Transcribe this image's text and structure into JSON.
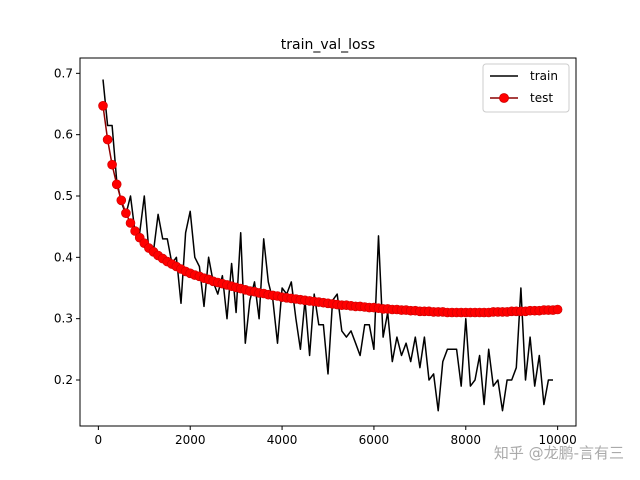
{
  "chart_data": {
    "type": "line",
    "title": "train_val_loss",
    "xlabel": "",
    "ylabel": "",
    "xlim": [
      -400,
      10400
    ],
    "ylim": [
      0.125,
      0.725
    ],
    "xticks": [
      0,
      2000,
      4000,
      6000,
      8000,
      10000
    ],
    "yticks": [
      0.2,
      0.3,
      0.4,
      0.5,
      0.6,
      0.7
    ],
    "grid": false,
    "legend": "top-right",
    "series": [
      {
        "name": "train",
        "color": "#000000",
        "marker": "none",
        "x": [
          100,
          200,
          300,
          400,
          500,
          600,
          700,
          800,
          900,
          1000,
          1100,
          1200,
          1300,
          1400,
          1500,
          1600,
          1700,
          1800,
          1900,
          2000,
          2100,
          2200,
          2300,
          2400,
          2500,
          2600,
          2700,
          2800,
          2900,
          3000,
          3100,
          3200,
          3300,
          3400,
          3500,
          3600,
          3700,
          3800,
          3900,
          4000,
          4100,
          4200,
          4300,
          4400,
          4500,
          4600,
          4700,
          4800,
          4900,
          5000,
          5100,
          5200,
          5300,
          5400,
          5500,
          5600,
          5700,
          5800,
          5900,
          6000,
          6100,
          6200,
          6300,
          6400,
          6500,
          6600,
          6700,
          6800,
          6900,
          7000,
          7100,
          7200,
          7300,
          7400,
          7500,
          7600,
          7700,
          7800,
          7900,
          8000,
          8100,
          8200,
          8300,
          8400,
          8500,
          8600,
          8700,
          8800,
          8900,
          9000,
          9100,
          9200,
          9300,
          9400,
          9500,
          9600,
          9700,
          9800,
          9900
        ],
        "y": [
          0.69,
          0.615,
          0.615,
          0.525,
          0.49,
          0.47,
          0.5,
          0.44,
          0.44,
          0.5,
          0.41,
          0.41,
          0.47,
          0.43,
          0.43,
          0.39,
          0.4,
          0.325,
          0.44,
          0.475,
          0.4,
          0.385,
          0.32,
          0.4,
          0.36,
          0.34,
          0.37,
          0.3,
          0.39,
          0.31,
          0.44,
          0.26,
          0.33,
          0.36,
          0.3,
          0.43,
          0.36,
          0.33,
          0.26,
          0.35,
          0.34,
          0.36,
          0.3,
          0.25,
          0.33,
          0.24,
          0.34,
          0.29,
          0.29,
          0.21,
          0.33,
          0.34,
          0.28,
          0.27,
          0.28,
          0.26,
          0.24,
          0.29,
          0.29,
          0.25,
          0.435,
          0.27,
          0.31,
          0.23,
          0.27,
          0.24,
          0.26,
          0.23,
          0.27,
          0.22,
          0.27,
          0.2,
          0.21,
          0.15,
          0.23,
          0.25,
          0.25,
          0.25,
          0.19,
          0.3,
          0.19,
          0.2,
          0.24,
          0.16,
          0.25,
          0.19,
          0.2,
          0.15,
          0.2,
          0.2,
          0.22,
          0.35,
          0.2,
          0.27,
          0.19,
          0.24,
          0.16,
          0.2,
          0.2
        ]
      },
      {
        "name": "test",
        "color": "#ff0000",
        "line_color": "#8b0000",
        "marker": "circle",
        "x": [
          100,
          200,
          300,
          400,
          500,
          600,
          700,
          800,
          900,
          1000,
          1100,
          1200,
          1300,
          1400,
          1500,
          1600,
          1700,
          1800,
          1900,
          2000,
          2100,
          2200,
          2300,
          2400,
          2500,
          2600,
          2700,
          2800,
          2900,
          3000,
          3100,
          3200,
          3300,
          3400,
          3500,
          3600,
          3700,
          3800,
          3900,
          4000,
          4100,
          4200,
          4300,
          4400,
          4500,
          4600,
          4700,
          4800,
          4900,
          5000,
          5100,
          5200,
          5300,
          5400,
          5500,
          5600,
          5700,
          5800,
          5900,
          6000,
          6100,
          6200,
          6300,
          6400,
          6500,
          6600,
          6700,
          6800,
          6900,
          7000,
          7100,
          7200,
          7300,
          7400,
          7500,
          7600,
          7700,
          7800,
          7900,
          8000,
          8100,
          8200,
          8300,
          8400,
          8500,
          8600,
          8700,
          8800,
          8900,
          9000,
          9100,
          9200,
          9300,
          9400,
          9500,
          9600,
          9700,
          9800,
          9900,
          10000
        ],
        "y": [
          0.647,
          0.592,
          0.551,
          0.519,
          0.493,
          0.472,
          0.456,
          0.443,
          0.432,
          0.423,
          0.415,
          0.409,
          0.403,
          0.398,
          0.393,
          0.389,
          0.385,
          0.381,
          0.377,
          0.374,
          0.371,
          0.369,
          0.366,
          0.364,
          0.361,
          0.359,
          0.357,
          0.355,
          0.353,
          0.351,
          0.349,
          0.347,
          0.345,
          0.344,
          0.342,
          0.341,
          0.339,
          0.338,
          0.337,
          0.335,
          0.334,
          0.333,
          0.332,
          0.331,
          0.33,
          0.329,
          0.328,
          0.327,
          0.326,
          0.325,
          0.324,
          0.323,
          0.322,
          0.322,
          0.321,
          0.32,
          0.32,
          0.319,
          0.318,
          0.318,
          0.317,
          0.316,
          0.316,
          0.315,
          0.315,
          0.314,
          0.314,
          0.313,
          0.313,
          0.312,
          0.312,
          0.312,
          0.311,
          0.311,
          0.311,
          0.31,
          0.31,
          0.31,
          0.31,
          0.31,
          0.31,
          0.31,
          0.31,
          0.31,
          0.31,
          0.311,
          0.311,
          0.311,
          0.311,
          0.312,
          0.312,
          0.312,
          0.312,
          0.313,
          0.313,
          0.313,
          0.314,
          0.314,
          0.314,
          0.315
        ]
      }
    ]
  },
  "watermark": "知乎 @龙鹏-言有三"
}
